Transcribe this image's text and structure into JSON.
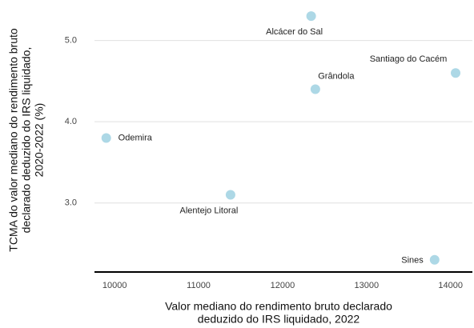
{
  "chart_data": {
    "type": "scatter",
    "xlabel": [
      "Valor mediano do rendimento bruto declarado",
      "deduzido do IRS liquidado, 2022"
    ],
    "ylabel": [
      "TCMA do valor mediano do rendimento bruto",
      "declarado deduzido do IRS liquidado,",
      "2020-2022 (%)"
    ],
    "labels": [
      "Odemira",
      "Alentejo Litoral",
      "Alcácer do Sal",
      "Grândola",
      "Santiago do Cacém",
      "Sines"
    ],
    "x": [
      9900,
      11380,
      12340,
      12390,
      14060,
      13810
    ],
    "values": [
      3.8,
      3.1,
      5.3,
      4.4,
      4.6,
      2.3
    ],
    "color": "#add8e6",
    "xlim": [
      9760,
      14260
    ],
    "ylim": [
      2.15,
      5.4
    ],
    "xticks": [
      10000,
      11000,
      12000,
      13000,
      14000
    ],
    "yticks": [
      {
        "value": 3,
        "label": "3.0"
      },
      {
        "value": 4,
        "label": "4.0"
      },
      {
        "value": 5,
        "label": "5.0"
      }
    ],
    "grid": true
  }
}
